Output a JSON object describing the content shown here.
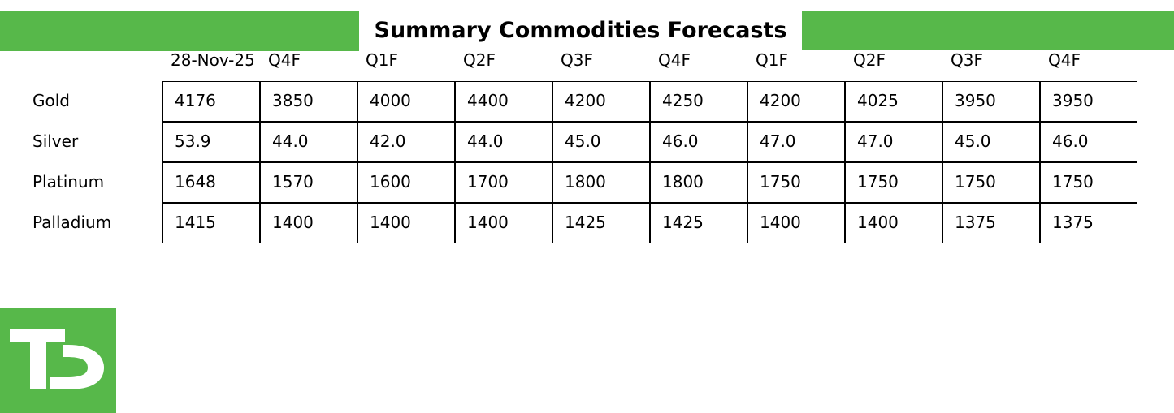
{
  "header": {
    "title": "Summary Commodities Forecasts"
  },
  "table": {
    "columns": [
      "28-Nov-25",
      "Q4F",
      "Q1F",
      "Q2F",
      "Q3F",
      "Q4F",
      "Q1F",
      "Q2F",
      "Q3F",
      "Q4F"
    ],
    "rows": [
      {
        "label": "Gold",
        "cells": [
          "4176",
          "3850",
          "4000",
          "4400",
          "4200",
          "4250",
          "4200",
          "4025",
          "3950",
          "3950"
        ]
      },
      {
        "label": "Silver",
        "cells": [
          "53.9",
          "44.0",
          "42.0",
          "44.0",
          "45.0",
          "46.0",
          "47.0",
          "47.0",
          "45.0",
          "46.0"
        ]
      },
      {
        "label": "Platinum",
        "cells": [
          "1648",
          "1570",
          "1600",
          "1700",
          "1800",
          "1800",
          "1750",
          "1750",
          "1750",
          "1750"
        ]
      },
      {
        "label": "Palladium",
        "cells": [
          "1415",
          "1400",
          "1400",
          "1400",
          "1425",
          "1425",
          "1400",
          "1400",
          "1375",
          "1375"
        ]
      }
    ]
  }
}
